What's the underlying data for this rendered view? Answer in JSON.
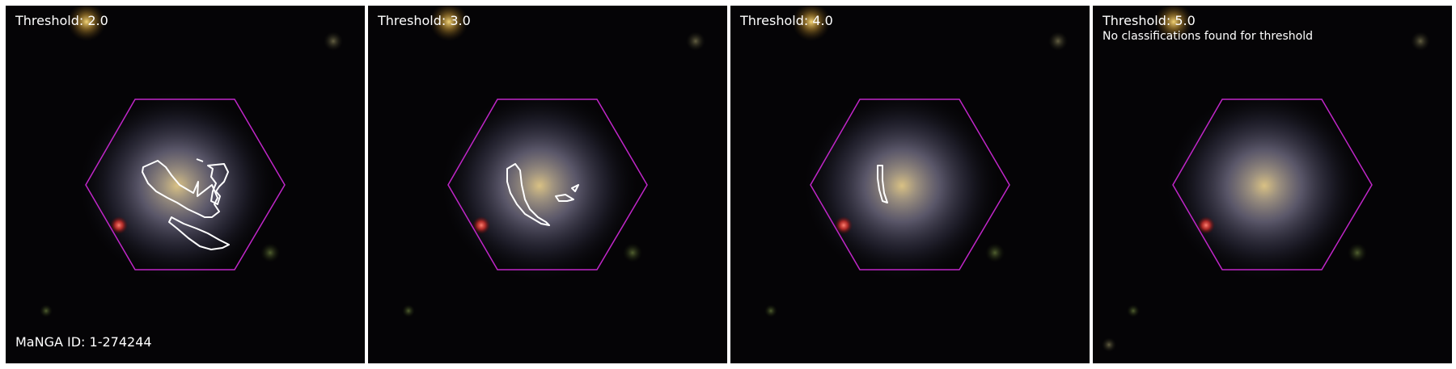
{
  "figure": {
    "manga_id_label": "MaNGA ID: 1-274244",
    "panels": [
      {
        "threshold_label": "Threshold: 2.0",
        "note": ""
      },
      {
        "threshold_label": "Threshold: 3.0",
        "note": ""
      },
      {
        "threshold_label": "Threshold: 4.0",
        "note": ""
      },
      {
        "threshold_label": "Threshold: 5.0",
        "note": "No classifications found for threshold"
      }
    ]
  },
  "colors": {
    "hexagon": "#c026c8",
    "contour": "#ffffff",
    "background": "#050406"
  }
}
